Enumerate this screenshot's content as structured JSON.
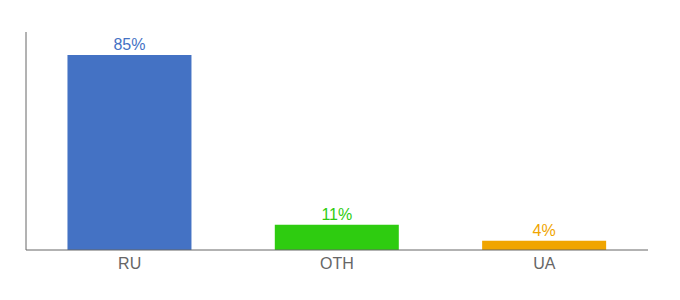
{
  "chart_data": {
    "type": "bar",
    "categories": [
      "RU",
      "OTH",
      "UA"
    ],
    "values": [
      85,
      11,
      4
    ],
    "value_labels": [
      "85%",
      "11%",
      "4%"
    ],
    "colors": [
      "#4472c4",
      "#2ecc10",
      "#f0a500"
    ],
    "ylim": [
      0,
      95
    ],
    "grid": false,
    "data_labels": true,
    "tick_labels": "x"
  }
}
